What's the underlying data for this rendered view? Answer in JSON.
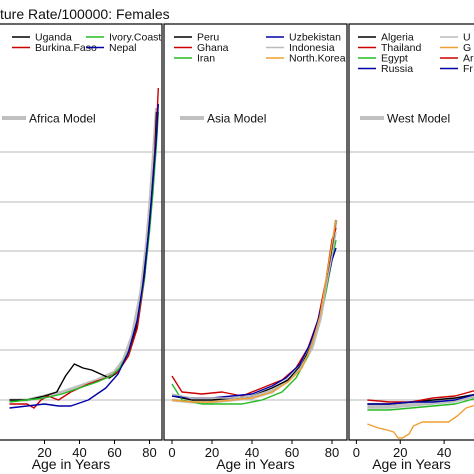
{
  "title": "ture Rate/100000: Females",
  "chart_data": [
    {
      "type": "line",
      "model_label": "Africa Model",
      "model_color": "#c0c0c0",
      "xlabel": "Age in Years",
      "xlim": [
        -2,
        86
      ],
      "ylim": [
        0,
        100
      ],
      "xticks": [
        20,
        40,
        60,
        80
      ],
      "tick_labels": [
        "20",
        "40",
        "60",
        "80"
      ],
      "legend": [
        {
          "name": "Uganda",
          "color": "#000000"
        },
        {
          "name": "Burkina.Faso",
          "color": "#cc0000"
        },
        {
          "name": "Ivory.Coast",
          "color": "#22bb22"
        },
        {
          "name": "Nepal",
          "color": "#0000aa"
        }
      ],
      "series": [
        {
          "color": "#c0c0c0",
          "width": 3,
          "points": [
            [
              0,
              10
            ],
            [
              10,
              10
            ],
            [
              20,
              11
            ],
            [
              30,
              12
            ],
            [
              40,
              13.5
            ],
            [
              50,
              15
            ],
            [
              60,
              17
            ],
            [
              65,
              20
            ],
            [
              70,
              26
            ],
            [
              75,
              37
            ],
            [
              78,
              48
            ],
            [
              80,
              58
            ],
            [
              82,
              70
            ],
            [
              84,
              83
            ]
          ]
        },
        {
          "color": "#000000",
          "width": 1.4,
          "points": [
            [
              0,
              10
            ],
            [
              10,
              10
            ],
            [
              20,
              11
            ],
            [
              27,
              12
            ],
            [
              32,
              16
            ],
            [
              37,
              19
            ],
            [
              42,
              18
            ],
            [
              47,
              17.5
            ],
            [
              52,
              16.5
            ],
            [
              57,
              15.5
            ],
            [
              62,
              17
            ],
            [
              67,
              21
            ],
            [
              72,
              27
            ],
            [
              76,
              38
            ],
            [
              79,
              50
            ],
            [
              81,
              60
            ],
            [
              83,
              72
            ],
            [
              84,
              82
            ]
          ]
        },
        {
          "color": "#cc0000",
          "width": 1.4,
          "points": [
            [
              0,
              9
            ],
            [
              10,
              9
            ],
            [
              14,
              8
            ],
            [
              18,
              10
            ],
            [
              22,
              11
            ],
            [
              28,
              10
            ],
            [
              35,
              12
            ],
            [
              45,
              14
            ],
            [
              55,
              15.5
            ],
            [
              62,
              17
            ],
            [
              68,
              21
            ],
            [
              73,
              28
            ],
            [
              77,
              40
            ],
            [
              80,
              53
            ],
            [
              82,
              65
            ],
            [
              84,
              78
            ],
            [
              85,
              88
            ]
          ]
        },
        {
          "color": "#22bb22",
          "width": 1.4,
          "points": [
            [
              0,
              9.5
            ],
            [
              10,
              10
            ],
            [
              20,
              10.5
            ],
            [
              30,
              11.5
            ],
            [
              40,
              13
            ],
            [
              50,
              14.5
            ],
            [
              58,
              16
            ],
            [
              63,
              18
            ],
            [
              68,
              22
            ],
            [
              73,
              30
            ],
            [
              77,
              40
            ],
            [
              80,
              52
            ],
            [
              82,
              62
            ],
            [
              84,
              74
            ],
            [
              85,
              82
            ]
          ]
        },
        {
          "color": "#0000aa",
          "width": 1.4,
          "points": [
            [
              0,
              8
            ],
            [
              10,
              8.5
            ],
            [
              20,
              9
            ],
            [
              28,
              8.5
            ],
            [
              35,
              8.5
            ],
            [
              45,
              10
            ],
            [
              55,
              13
            ],
            [
              62,
              16.5
            ],
            [
              68,
              22
            ],
            [
              73,
              30
            ],
            [
              77,
              41
            ],
            [
              80,
              54
            ],
            [
              82,
              65
            ],
            [
              84,
              76
            ],
            [
              85,
              84
            ]
          ]
        }
      ]
    },
    {
      "type": "line",
      "model_label": "Asia Model",
      "model_color": "#c0c0c0",
      "xlabel": "Age in Years",
      "xlim": [
        -2,
        86
      ],
      "ylim": [
        0,
        100
      ],
      "xticks": [
        0,
        20,
        40,
        60,
        80
      ],
      "tick_labels": [
        "0",
        "20",
        "40",
        "60",
        "80"
      ],
      "legend": [
        {
          "name": "Peru",
          "color": "#000000"
        },
        {
          "name": "Ghana",
          "color": "#cc0000"
        },
        {
          "name": "Iran",
          "color": "#22bb22"
        },
        {
          "name": "Uzbekistan",
          "color": "#0000aa"
        },
        {
          "name": "Indonesia",
          "color": "#bbbbbb"
        },
        {
          "name": "North.Korea",
          "color": "#f0a030"
        }
      ],
      "series": [
        {
          "color": "#c0c0c0",
          "width": 3,
          "points": [
            [
              0,
              10
            ],
            [
              10,
              9.5
            ],
            [
              20,
              9.5
            ],
            [
              30,
              10
            ],
            [
              40,
              10.5
            ],
            [
              50,
              12
            ],
            [
              58,
              15
            ],
            [
              64,
              18
            ],
            [
              70,
              23
            ],
            [
              74,
              30
            ],
            [
              77,
              38
            ],
            [
              80,
              47
            ],
            [
              82,
              55
            ]
          ]
        },
        {
          "color": "#000000",
          "width": 1.4,
          "points": [
            [
              0,
              11
            ],
            [
              10,
              10
            ],
            [
              20,
              10
            ],
            [
              30,
              10.5
            ],
            [
              40,
              11
            ],
            [
              50,
              13
            ],
            [
              58,
              15
            ],
            [
              65,
              19
            ],
            [
              70,
              24
            ],
            [
              74,
              31
            ],
            [
              77,
              39
            ],
            [
              80,
              48
            ],
            [
              82,
              55
            ]
          ]
        },
        {
          "color": "#cc0000",
          "width": 1.4,
          "points": [
            [
              0,
              16
            ],
            [
              5,
              12
            ],
            [
              15,
              11.5
            ],
            [
              25,
              12
            ],
            [
              35,
              11
            ],
            [
              45,
              13
            ],
            [
              55,
              15
            ],
            [
              62,
              18
            ],
            [
              68,
              23
            ],
            [
              73,
              30
            ],
            [
              77,
              40
            ],
            [
              80,
              50
            ],
            [
              82,
              53
            ]
          ]
        },
        {
          "color": "#22bb22",
          "width": 1.4,
          "points": [
            [
              0,
              14
            ],
            [
              5,
              10
            ],
            [
              15,
              9
            ],
            [
              25,
              9
            ],
            [
              35,
              9
            ],
            [
              45,
              10
            ],
            [
              55,
              12
            ],
            [
              62,
              15.5
            ],
            [
              68,
              21
            ],
            [
              73,
              29
            ],
            [
              77,
              37
            ],
            [
              80,
              45
            ],
            [
              82,
              50
            ]
          ]
        },
        {
          "color": "#0000aa",
          "width": 1.4,
          "points": [
            [
              0,
              11
            ],
            [
              10,
              10.5
            ],
            [
              20,
              10.5
            ],
            [
              30,
              11
            ],
            [
              40,
              11.5
            ],
            [
              50,
              13.5
            ],
            [
              57,
              15.5
            ],
            [
              64,
              19
            ],
            [
              69,
              24
            ],
            [
              73,
              30
            ],
            [
              77,
              38
            ],
            [
              80,
              45
            ],
            [
              82,
              48
            ]
          ]
        },
        {
          "color": "#bbbbbb",
          "width": 1.4,
          "points": [
            [
              0,
              11.5
            ],
            [
              10,
              10.5
            ],
            [
              20,
              10.5
            ],
            [
              30,
              10.5
            ],
            [
              40,
              11
            ],
            [
              50,
              12.5
            ],
            [
              58,
              14.5
            ],
            [
              64,
              18
            ],
            [
              70,
              23
            ],
            [
              74,
              30
            ],
            [
              77,
              38
            ],
            [
              80,
              46
            ],
            [
              82,
              52
            ]
          ]
        },
        {
          "color": "#f0a030",
          "width": 1.4,
          "points": [
            [
              0,
              10
            ],
            [
              10,
              9.5
            ],
            [
              20,
              9.5
            ],
            [
              30,
              10
            ],
            [
              40,
              10.5
            ],
            [
              50,
              12
            ],
            [
              58,
              14.5
            ],
            [
              65,
              18
            ],
            [
              70,
              24
            ],
            [
              74,
              31
            ],
            [
              77,
              40
            ],
            [
              80,
              49
            ],
            [
              82,
              55
            ]
          ]
        }
      ]
    },
    {
      "type": "line",
      "model_label": "West Model",
      "model_color": "#c0c0c0",
      "xlabel": "Age in Years",
      "xlim": [
        -2,
        86
      ],
      "ylim": [
        0,
        100
      ],
      "xticks": [
        0,
        20,
        40
      ],
      "tick_labels": [
        "0",
        "20",
        "40"
      ],
      "legend": [
        {
          "name": "Algeria",
          "color": "#000000"
        },
        {
          "name": "Thailand",
          "color": "#cc0000"
        },
        {
          "name": "Egypt",
          "color": "#22bb22"
        },
        {
          "name": "Russia",
          "color": "#0000aa"
        },
        {
          "name": "U",
          "color": "#bbbbbb"
        },
        {
          "name": "G",
          "color": "#f0a030"
        },
        {
          "name": "Ar",
          "color": "#cc0000"
        },
        {
          "name": "Fr",
          "color": "#0000aa"
        }
      ],
      "series": [
        {
          "color": "#c0c0c0",
          "width": 3,
          "points": [
            [
              5,
              8.5
            ],
            [
              15,
              8.5
            ],
            [
              25,
              9
            ],
            [
              35,
              9.5
            ],
            [
              45,
              10
            ],
            [
              55,
              11
            ],
            [
              62,
              13
            ],
            [
              68,
              15.5
            ]
          ]
        },
        {
          "color": "#000000",
          "width": 1.4,
          "points": [
            [
              5,
              9
            ],
            [
              15,
              9
            ],
            [
              25,
              9.5
            ],
            [
              35,
              10
            ],
            [
              45,
              10.5
            ],
            [
              55,
              11.5
            ],
            [
              62,
              13
            ],
            [
              68,
              15.5
            ]
          ]
        },
        {
          "color": "#cc0000",
          "width": 1.4,
          "points": [
            [
              5,
              10
            ],
            [
              15,
              9.5
            ],
            [
              25,
              9.5
            ],
            [
              35,
              10.5
            ],
            [
              45,
              11
            ],
            [
              55,
              12.5
            ],
            [
              62,
              14.5
            ],
            [
              68,
              18
            ]
          ]
        },
        {
          "color": "#22bb22",
          "width": 1.4,
          "points": [
            [
              5,
              7.5
            ],
            [
              15,
              7.5
            ],
            [
              25,
              8
            ],
            [
              35,
              8.5
            ],
            [
              45,
              9
            ],
            [
              55,
              10.5
            ],
            [
              62,
              12.5
            ],
            [
              68,
              15
            ]
          ]
        },
        {
          "color": "#0000aa",
          "width": 1.4,
          "points": [
            [
              5,
              9
            ],
            [
              15,
              9
            ],
            [
              25,
              9.5
            ],
            [
              35,
              9.5
            ],
            [
              45,
              10
            ],
            [
              55,
              11.5
            ],
            [
              62,
              13.5
            ],
            [
              68,
              16.5
            ]
          ]
        },
        {
          "color": "#f0a030",
          "width": 1.4,
          "points": [
            [
              5,
              4
            ],
            [
              10,
              3
            ],
            [
              14,
              2.5
            ],
            [
              17,
              2
            ],
            [
              19,
              0.5
            ],
            [
              21,
              0.5
            ],
            [
              24,
              1.5
            ],
            [
              26,
              3.5
            ],
            [
              30,
              4.5
            ],
            [
              36,
              4.5
            ],
            [
              42,
              4.5
            ],
            [
              46,
              6
            ],
            [
              50,
              8
            ],
            [
              56,
              9
            ],
            [
              62,
              10.5
            ],
            [
              68,
              12
            ]
          ]
        },
        {
          "color": "#bbbbbb",
          "width": 1.4,
          "points": [
            [
              5,
              8
            ],
            [
              15,
              8
            ],
            [
              25,
              8.5
            ],
            [
              35,
              9
            ],
            [
              45,
              9.5
            ],
            [
              55,
              11
            ],
            [
              62,
              13
            ],
            [
              68,
              15
            ]
          ]
        }
      ]
    }
  ]
}
